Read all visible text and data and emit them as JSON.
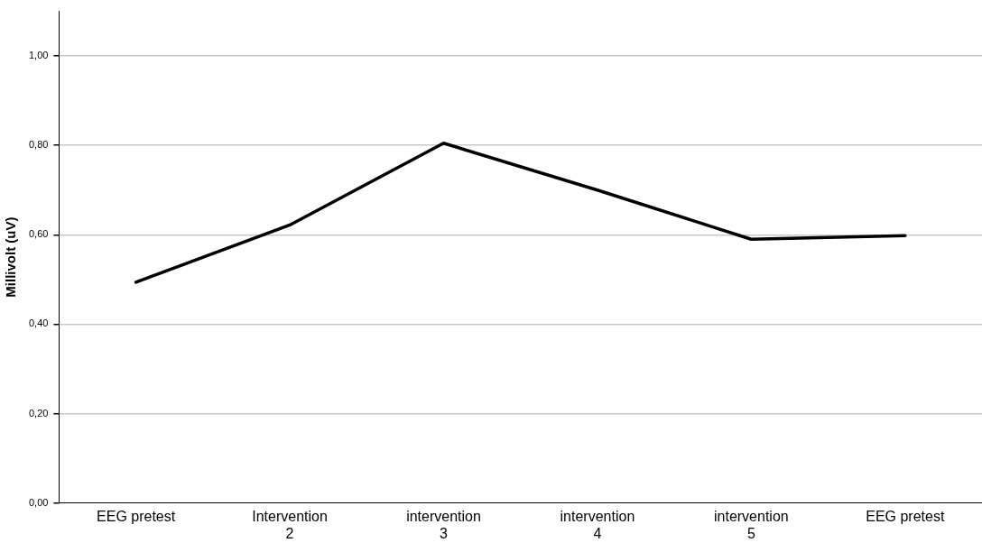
{
  "chart_data": {
    "type": "line",
    "ylabel": "Millivolt (uV)",
    "categories": [
      "EEG pretest",
      "Intervention\n2",
      "intervention\n3",
      "intervention\n4",
      "intervention\n5",
      "EEG pretest"
    ],
    "series": [
      {
        "color": "#000000",
        "values": [
          0.494,
          0.622,
          0.805,
          0.7,
          0.59,
          0.598
        ]
      }
    ],
    "ylim": [
      0,
      1.1
    ],
    "yticks": [
      {
        "value": 0,
        "label": "0,00"
      },
      {
        "value": 0.2,
        "label": "0,20"
      },
      {
        "value": 0.4,
        "label": "0,40"
      },
      {
        "value": 0.6,
        "label": "0,60"
      },
      {
        "value": 0.8,
        "label": "0,80"
      },
      {
        "value": 1.0,
        "label": "1,00"
      }
    ],
    "grid": "y",
    "legend": false,
    "marker": "none",
    "line_style": "solid"
  }
}
